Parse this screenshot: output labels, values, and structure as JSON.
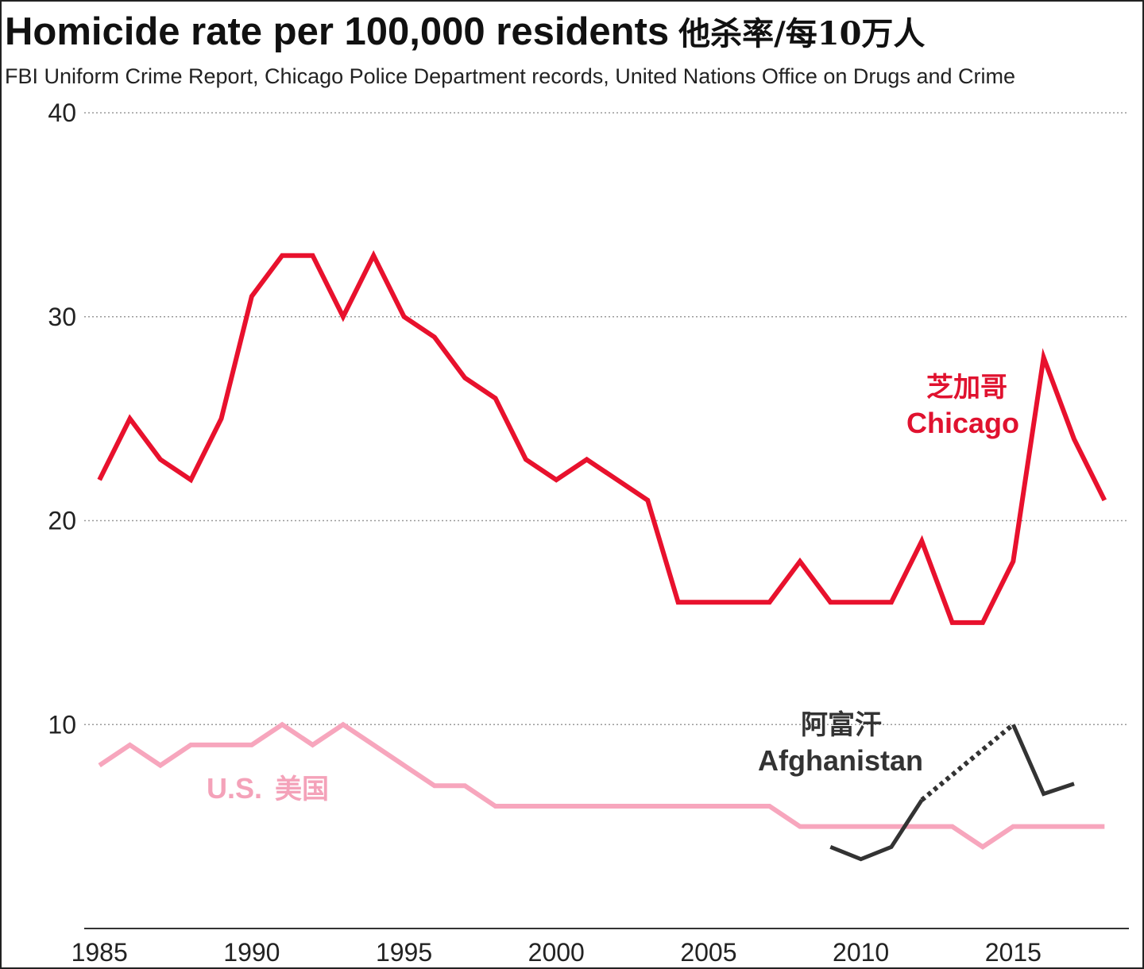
{
  "chart_data": {
    "type": "line",
    "title": "Homicide rate per 100,000 residents",
    "title_zh": "他杀率/每10万人",
    "subtitle": "FBI Uniform Crime Report, Chicago Police Department records, United Nations Office on Drugs and Crime",
    "xlabel": "",
    "ylabel": "",
    "xlim": [
      1984.5,
      2018.8
    ],
    "ylim": [
      0,
      40
    ],
    "x_ticks": [
      {
        "value": 1985,
        "label": "1985"
      },
      {
        "value": 1990,
        "label": "1990"
      },
      {
        "value": 1995,
        "label": "1995"
      },
      {
        "value": 2000,
        "label": "2000"
      },
      {
        "value": 2005,
        "label": "2005"
      },
      {
        "value": 2010,
        "label": "2010"
      },
      {
        "value": 2015,
        "label": "2015"
      }
    ],
    "y_ticks": [
      {
        "value": 10,
        "label": "10"
      },
      {
        "value": 20,
        "label": "20"
      },
      {
        "value": 30,
        "label": "30"
      },
      {
        "value": 40,
        "label": "40"
      }
    ],
    "grid": true,
    "series": [
      {
        "name": "Chicago",
        "name_zh": "芝加哥",
        "color": "#e8112d",
        "label_color": "#e0122f",
        "x": [
          1985,
          1986,
          1987,
          1988,
          1989,
          1990,
          1991,
          1992,
          1993,
          1994,
          1995,
          1996,
          1997,
          1998,
          1999,
          2000,
          2001,
          2002,
          2003,
          2004,
          2005,
          2006,
          2007,
          2008,
          2009,
          2010,
          2011,
          2012,
          2013,
          2014,
          2015,
          2016,
          2017,
          2018
        ],
        "values": [
          22,
          25,
          23,
          22,
          25,
          31,
          33,
          33,
          30,
          33,
          30,
          29,
          27,
          26,
          23,
          22,
          23,
          22,
          21,
          16,
          16,
          16,
          16,
          18,
          16,
          16,
          16,
          19,
          15,
          15,
          18,
          28,
          24,
          21
        ]
      },
      {
        "name": "U.S.",
        "name_zh": "美国",
        "color": "#f7a6bd",
        "label_color": "#f4a2b9",
        "x": [
          1985,
          1986,
          1987,
          1988,
          1989,
          1990,
          1991,
          1992,
          1993,
          1994,
          1995,
          1996,
          1997,
          1998,
          1999,
          2000,
          2001,
          2002,
          2003,
          2004,
          2005,
          2006,
          2007,
          2008,
          2009,
          2010,
          2011,
          2012,
          2013,
          2014,
          2015,
          2016,
          2017,
          2018
        ],
        "values": [
          8,
          9,
          8,
          9,
          9,
          9,
          10,
          9,
          10,
          9,
          8,
          7,
          7,
          6,
          6,
          6,
          6,
          6,
          6,
          6,
          6,
          6,
          6,
          5,
          5,
          5,
          5,
          5,
          5,
          4,
          5,
          5,
          5,
          5
        ]
      },
      {
        "name": "Afghanistan",
        "name_zh": "阿富汗",
        "color": "#333333",
        "label_color": "#333333",
        "x": [
          2009,
          2010,
          2011,
          2012,
          2015,
          2016,
          2017
        ],
        "values": [
          4,
          3.4,
          4,
          6.3,
          10,
          6.6,
          7.1
        ],
        "dotted_segment": [
          2012,
          2015
        ]
      }
    ]
  }
}
